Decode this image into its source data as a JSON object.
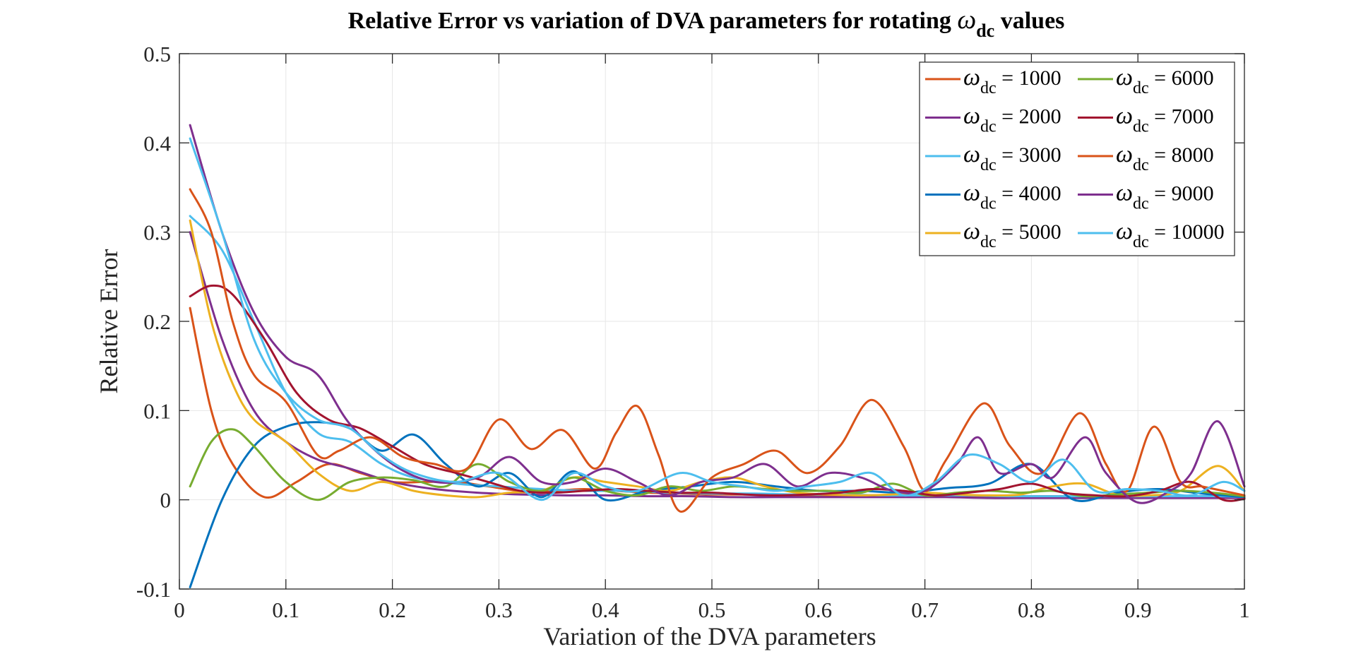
{
  "chart_data": {
    "type": "line",
    "title": {
      "main": "Relative Error vs variation of DVA parameters for rotating ",
      "symbol": "ω",
      "subscript": "dc",
      "suffix": " values"
    },
    "xlabel": "Variation of the DVA parameters",
    "ylabel": "Relative Error",
    "xlim": [
      0,
      1
    ],
    "ylim": [
      -0.1,
      0.5
    ],
    "xticks": [
      0,
      0.1,
      0.2,
      0.3,
      0.4,
      0.5,
      0.6,
      0.7,
      0.8,
      0.9,
      1
    ],
    "xtick_labels": [
      "0",
      "0.1",
      "0.2",
      "0.3",
      "0.4",
      "0.5",
      "0.6",
      "0.7",
      "0.8",
      "0.9",
      "1"
    ],
    "yticks": [
      -0.1,
      0,
      0.1,
      0.2,
      0.3,
      0.4,
      0.5
    ],
    "ytick_labels": [
      "-0.1",
      "0",
      "0.1",
      "0.2",
      "0.3",
      "0.4",
      "0.5"
    ],
    "grid": true,
    "legend_position": "top-right",
    "legend_columns": 2,
    "series": [
      {
        "symbol": "ω",
        "sub": "dc",
        "value_text": " = 1000",
        "color": "#D95319",
        "x": [
          0.01,
          0.03,
          0.05,
          0.08,
          0.11,
          0.14,
          0.17,
          0.2,
          0.23,
          0.26,
          0.29,
          0.32,
          0.35,
          0.38,
          0.41,
          0.44,
          0.47,
          0.5,
          0.53,
          0.56,
          0.59,
          0.62,
          0.65,
          0.68,
          0.71,
          0.74,
          0.77,
          0.8,
          0.83,
          0.86,
          0.89,
          0.92,
          0.95,
          0.98,
          1.0
        ],
        "y": [
          0.215,
          0.1,
          0.04,
          0.003,
          0.02,
          0.04,
          0.03,
          0.02,
          0.02,
          0.02,
          0.015,
          0.01,
          0.01,
          0.012,
          0.01,
          0.008,
          0.007,
          0.006,
          0.006,
          0.006,
          0.005,
          0.005,
          0.005,
          0.004,
          0.004,
          0.004,
          0.004,
          0.004,
          0.004,
          0.003,
          0.003,
          0.003,
          0.003,
          0.003,
          0.002
        ]
      },
      {
        "symbol": "ω",
        "sub": "dc",
        "value_text": " = 2000",
        "color": "#7E2F8E",
        "x": [
          0.01,
          0.04,
          0.07,
          0.1,
          0.13,
          0.16,
          0.2,
          0.24,
          0.28,
          0.32,
          0.36,
          0.4,
          0.44,
          0.48,
          0.52,
          0.56,
          0.6,
          0.64,
          0.68,
          0.72,
          0.76,
          0.8,
          0.84,
          0.88,
          0.92,
          0.96,
          1.0
        ],
        "y": [
          0.3,
          0.18,
          0.1,
          0.065,
          0.045,
          0.035,
          0.02,
          0.012,
          0.008,
          0.006,
          0.005,
          0.005,
          0.004,
          0.004,
          0.003,
          0.003,
          0.003,
          0.003,
          0.003,
          0.003,
          0.002,
          0.002,
          0.002,
          0.002,
          0.002,
          0.002,
          0.002
        ]
      },
      {
        "symbol": "ω",
        "sub": "dc",
        "value_text": " = 3000",
        "color": "#4DBEEE",
        "x": [
          0.01,
          0.04,
          0.07,
          0.1,
          0.13,
          0.16,
          0.19,
          0.22,
          0.26,
          0.3,
          0.34,
          0.38,
          0.42,
          0.46,
          0.5,
          0.54,
          0.58,
          0.62,
          0.66,
          0.7,
          0.74,
          0.78,
          0.82,
          0.86,
          0.9,
          0.94,
          0.98,
          1.0
        ],
        "y": [
          0.318,
          0.28,
          0.2,
          0.12,
          0.075,
          0.065,
          0.04,
          0.025,
          0.018,
          0.015,
          0.012,
          0.01,
          0.01,
          0.008,
          0.007,
          0.007,
          0.006,
          0.006,
          0.005,
          0.005,
          0.005,
          0.004,
          0.004,
          0.004,
          0.004,
          0.004,
          0.004,
          0.003
        ]
      },
      {
        "symbol": "ω",
        "sub": "dc",
        "value_text": " = 4000",
        "color": "#0072BD",
        "x": [
          0.01,
          0.04,
          0.07,
          0.1,
          0.13,
          0.16,
          0.19,
          0.22,
          0.25,
          0.28,
          0.31,
          0.34,
          0.37,
          0.4,
          0.44,
          0.48,
          0.52,
          0.56,
          0.6,
          0.64,
          0.68,
          0.72,
          0.76,
          0.8,
          0.84,
          0.88,
          0.92,
          0.96,
          1.0
        ],
        "y": [
          -0.098,
          0.0,
          0.06,
          0.082,
          0.087,
          0.08,
          0.055,
          0.073,
          0.04,
          0.015,
          0.03,
          0.003,
          0.032,
          0.0,
          0.01,
          0.015,
          0.02,
          0.015,
          0.01,
          0.01,
          0.008,
          0.013,
          0.018,
          0.04,
          0.0,
          0.008,
          0.012,
          0.007,
          0.003
        ]
      },
      {
        "symbol": "ω",
        "sub": "dc",
        "value_text": " = 5000",
        "color": "#EDB120",
        "x": [
          0.01,
          0.03,
          0.05,
          0.07,
          0.1,
          0.13,
          0.16,
          0.19,
          0.22,
          0.25,
          0.28,
          0.31,
          0.34,
          0.37,
          0.4,
          0.43,
          0.46,
          0.49,
          0.52,
          0.55,
          0.58,
          0.61,
          0.64,
          0.67,
          0.7,
          0.73,
          0.76,
          0.79,
          0.82,
          0.85,
          0.88,
          0.91,
          0.94,
          0.975,
          1.0
        ],
        "y": [
          0.313,
          0.2,
          0.13,
          0.09,
          0.065,
          0.03,
          0.01,
          0.02,
          0.01,
          0.005,
          0.003,
          0.008,
          0.01,
          0.025,
          0.02,
          0.015,
          0.01,
          0.02,
          0.025,
          0.015,
          0.008,
          0.006,
          0.005,
          0.006,
          0.008,
          0.006,
          0.005,
          0.006,
          0.015,
          0.018,
          0.006,
          0.005,
          0.01,
          0.038,
          0.01
        ]
      },
      {
        "symbol": "ω",
        "sub": "dc",
        "value_text": " = 6000",
        "color": "#77AC30",
        "x": [
          0.01,
          0.03,
          0.05,
          0.07,
          0.1,
          0.13,
          0.16,
          0.19,
          0.22,
          0.25,
          0.28,
          0.31,
          0.34,
          0.37,
          0.4,
          0.43,
          0.46,
          0.49,
          0.52,
          0.55,
          0.58,
          0.61,
          0.64,
          0.67,
          0.7,
          0.73,
          0.76,
          0.79,
          0.82,
          0.85,
          0.88,
          0.91,
          0.94,
          0.97,
          1.0
        ],
        "y": [
          0.015,
          0.065,
          0.079,
          0.06,
          0.02,
          0.0,
          0.02,
          0.025,
          0.022,
          0.015,
          0.04,
          0.02,
          0.01,
          0.025,
          0.01,
          0.005,
          0.015,
          0.01,
          0.015,
          0.012,
          0.01,
          0.01,
          0.008,
          0.018,
          0.005,
          0.008,
          0.01,
          0.008,
          0.01,
          0.004,
          0.006,
          0.008,
          0.01,
          0.008,
          0.004
        ]
      },
      {
        "symbol": "ω",
        "sub": "dc",
        "value_text": " = 7000",
        "color": "#A2142F",
        "x": [
          0.01,
          0.03,
          0.05,
          0.08,
          0.11,
          0.14,
          0.17,
          0.2,
          0.23,
          0.26,
          0.29,
          0.32,
          0.35,
          0.38,
          0.41,
          0.44,
          0.47,
          0.5,
          0.53,
          0.56,
          0.59,
          0.62,
          0.65,
          0.68,
          0.71,
          0.74,
          0.77,
          0.8,
          0.83,
          0.86,
          0.89,
          0.92,
          0.95,
          0.98,
          1.0
        ],
        "y": [
          0.228,
          0.24,
          0.23,
          0.18,
          0.12,
          0.09,
          0.08,
          0.06,
          0.04,
          0.03,
          0.02,
          0.01,
          0.008,
          0.01,
          0.012,
          0.01,
          0.008,
          0.008,
          0.006,
          0.005,
          0.006,
          0.008,
          0.012,
          0.01,
          0.005,
          0.008,
          0.012,
          0.018,
          0.008,
          0.005,
          0.004,
          0.01,
          0.02,
          0.0,
          0.001
        ]
      },
      {
        "symbol": "ω",
        "sub": "dc",
        "value_text": " = 8000",
        "color": "#D95319",
        "x": [
          0.01,
          0.03,
          0.05,
          0.07,
          0.1,
          0.13,
          0.15,
          0.18,
          0.21,
          0.24,
          0.27,
          0.3,
          0.33,
          0.36,
          0.39,
          0.41,
          0.43,
          0.45,
          0.47,
          0.5,
          0.53,
          0.56,
          0.59,
          0.62,
          0.65,
          0.68,
          0.7,
          0.72,
          0.755,
          0.78,
          0.81,
          0.845,
          0.87,
          0.89,
          0.915,
          0.94,
          0.96,
          0.98,
          1.0
        ],
        "y": [
          0.348,
          0.3,
          0.2,
          0.14,
          0.11,
          0.05,
          0.055,
          0.07,
          0.048,
          0.04,
          0.035,
          0.09,
          0.057,
          0.078,
          0.035,
          0.075,
          0.105,
          0.05,
          -0.013,
          0.025,
          0.04,
          0.055,
          0.03,
          0.06,
          0.112,
          0.06,
          0.01,
          0.045,
          0.108,
          0.06,
          0.03,
          0.097,
          0.04,
          0.01,
          0.082,
          0.02,
          0.015,
          0.01,
          0.005
        ]
      },
      {
        "symbol": "ω",
        "sub": "dc",
        "value_text": " = 9000",
        "color": "#7E2F8E",
        "x": [
          0.01,
          0.04,
          0.07,
          0.1,
          0.13,
          0.16,
          0.2,
          0.24,
          0.28,
          0.31,
          0.34,
          0.37,
          0.4,
          0.43,
          0.46,
          0.49,
          0.52,
          0.55,
          0.58,
          0.61,
          0.64,
          0.67,
          0.7,
          0.73,
          0.75,
          0.77,
          0.8,
          0.82,
          0.85,
          0.87,
          0.9,
          0.93,
          0.95,
          0.975,
          1.0
        ],
        "y": [
          0.42,
          0.3,
          0.21,
          0.16,
          0.14,
          0.085,
          0.04,
          0.02,
          0.025,
          0.048,
          0.02,
          0.02,
          0.035,
          0.02,
          0.005,
          0.02,
          0.025,
          0.04,
          0.015,
          0.03,
          0.025,
          0.01,
          0.01,
          0.04,
          0.07,
          0.03,
          0.04,
          0.025,
          0.07,
          0.03,
          -0.003,
          0.01,
          0.03,
          0.088,
          0.015
        ]
      },
      {
        "symbol": "ω",
        "sub": "dc",
        "value_text": " = 10000",
        "color": "#4DBEEE",
        "x": [
          0.01,
          0.04,
          0.07,
          0.1,
          0.13,
          0.16,
          0.19,
          0.22,
          0.26,
          0.3,
          0.34,
          0.37,
          0.4,
          0.43,
          0.47,
          0.5,
          0.53,
          0.56,
          0.59,
          0.62,
          0.65,
          0.68,
          0.71,
          0.74,
          0.77,
          0.8,
          0.83,
          0.86,
          0.89,
          0.92,
          0.95,
          0.98,
          1.0
        ],
        "y": [
          0.405,
          0.3,
          0.18,
          0.12,
          0.09,
          0.08,
          0.05,
          0.03,
          0.02,
          0.03,
          0.0,
          0.03,
          0.015,
          0.01,
          0.03,
          0.02,
          0.015,
          0.01,
          0.015,
          0.02,
          0.03,
          0.005,
          0.02,
          0.05,
          0.04,
          0.02,
          0.045,
          0.01,
          0.012,
          0.01,
          0.005,
          0.02,
          0.01
        ]
      }
    ]
  }
}
